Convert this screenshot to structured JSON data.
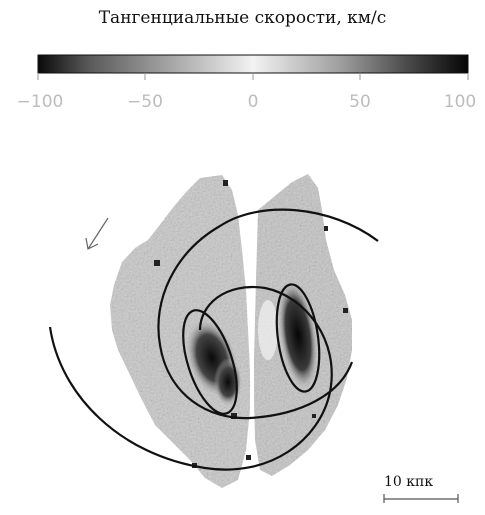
{
  "title": "Тангенциальные скорости, км/с",
  "colorbar": {
    "ticks": [
      "−100",
      "−50",
      "0",
      "50",
      "100"
    ],
    "min": -100,
    "max": 100
  },
  "scale_bar": {
    "label": "10 кпк"
  }
}
